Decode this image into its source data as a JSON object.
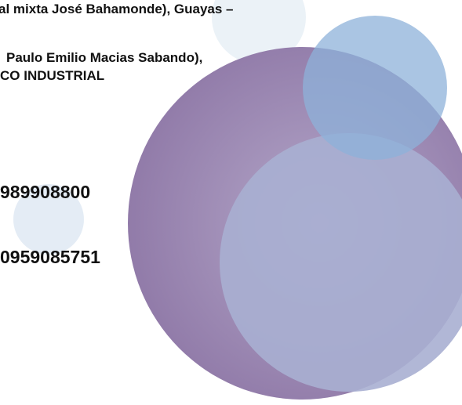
{
  "text": {
    "line_1": "al mixta José Bahamonde), Guayas –",
    "line_2": "Paulo Emilio Macias Sabando),",
    "line_3": "CO INDUSTRIAL",
    "phone_1": "989908800",
    "phone_2": "0959085751"
  }
}
